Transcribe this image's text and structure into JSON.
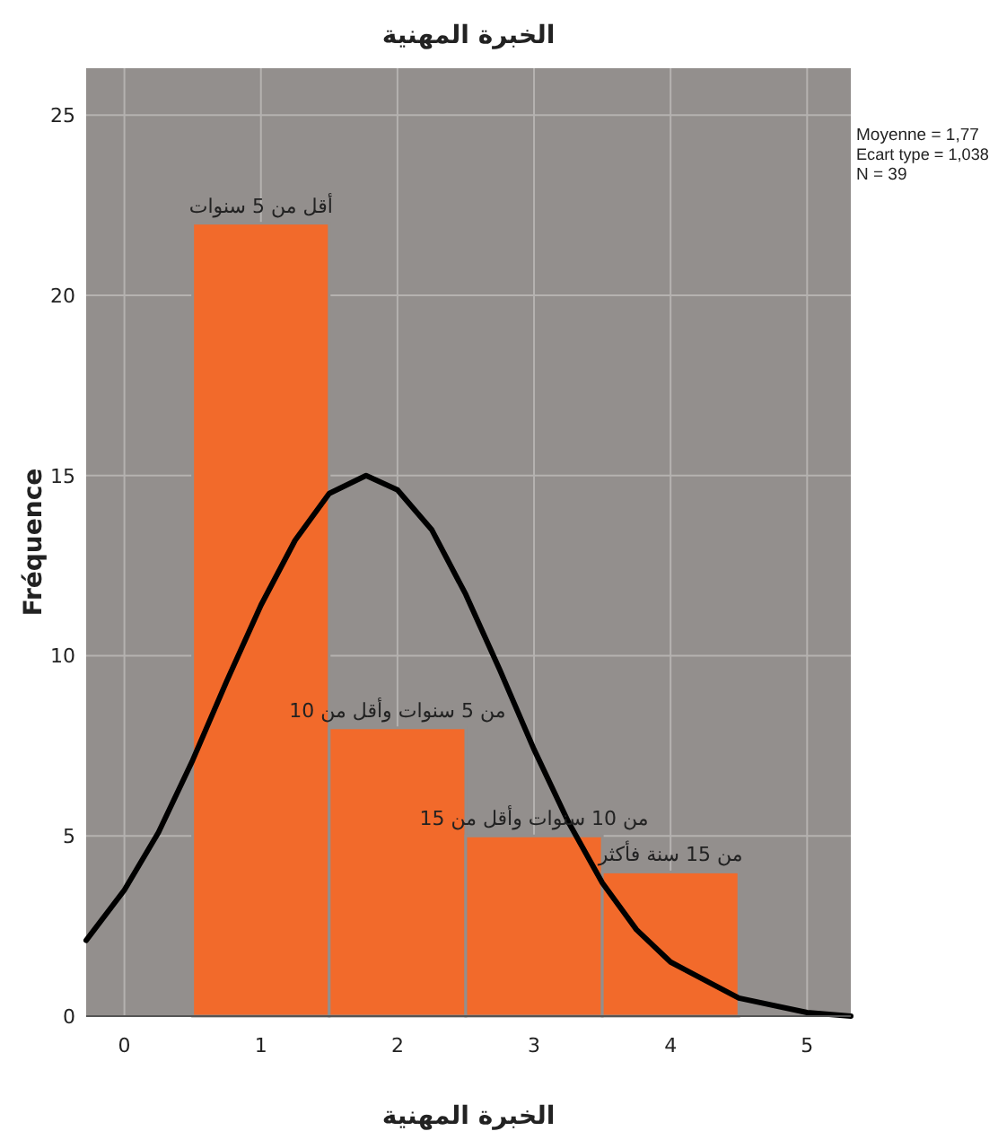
{
  "chart_data": {
    "type": "histogram",
    "title": "الخبرة المهنية",
    "xlabel": "الخبرة المهنية",
    "ylabel": "Fréquence",
    "bins": [
      0.5,
      1.5,
      2.5,
      3.5,
      4.5
    ],
    "values": [
      22,
      8,
      5,
      4
    ],
    "color": "#f26a2b",
    "series": [
      {
        "type": "line",
        "color": "#000000",
        "x": [
          -0.28,
          0,
          0.25,
          0.5,
          0.75,
          1,
          1.25,
          1.5,
          1.77,
          2,
          2.25,
          2.5,
          2.75,
          3,
          3.25,
          3.5,
          3.75,
          4,
          4.5,
          5,
          5.32
        ],
        "values": [
          2.1,
          3.5,
          5.1,
          7.1,
          9.3,
          11.4,
          13.2,
          14.5,
          15.0,
          14.6,
          13.5,
          11.7,
          9.6,
          7.4,
          5.4,
          3.7,
          2.4,
          1.5,
          0.5,
          0.1,
          0.0
        ]
      }
    ],
    "annotations": [
      {
        "text": "أقل من 5 سنوات",
        "x": 1,
        "y": 22
      },
      {
        "text": "من 5 سنوات وأقل من 10",
        "x": 2,
        "y": 8
      },
      {
        "text": "من 10 سنوات وأقل من 15",
        "x": 3,
        "y": 5
      },
      {
        "text": "من 15 سنة فأكثر",
        "x": 4,
        "y": 4
      },
      "Moyenne = 1,77",
      "Ecart type = 1,038",
      "N = 39"
    ],
    "xlim": [
      -0.28,
      5.32
    ],
    "ylim": [
      0,
      26.3
    ],
    "xticks": [
      0,
      1,
      2,
      3,
      4,
      5
    ],
    "yticks": [
      0,
      5,
      10,
      15,
      20,
      25
    ],
    "grid": true
  }
}
